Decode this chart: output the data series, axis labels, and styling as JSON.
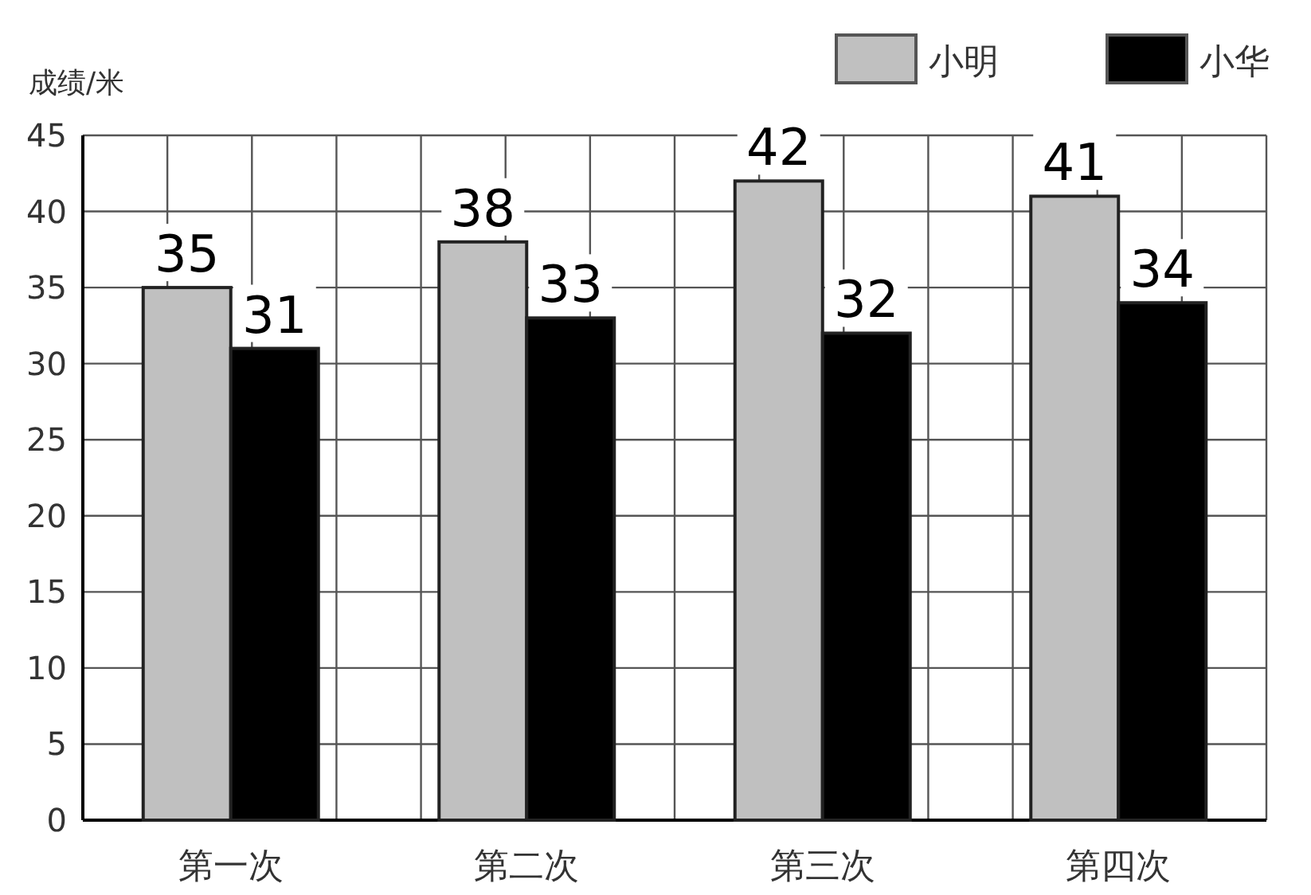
{
  "chart_data": {
    "type": "bar",
    "ylabel": "成绩/米",
    "categories": [
      "第一次",
      "第二次",
      "第三次",
      "第四次"
    ],
    "series": [
      {
        "name": "小明",
        "color": "#c0c0c0",
        "values": [
          35,
          38,
          42,
          41
        ]
      },
      {
        "name": "小华",
        "color": "#000000",
        "values": [
          31,
          33,
          32,
          34
        ]
      }
    ],
    "ylim": [
      0,
      45
    ],
    "yticks": [
      0,
      5,
      10,
      15,
      20,
      25,
      30,
      35,
      40,
      45
    ],
    "grid": true,
    "legend": "top right",
    "data_labels": true
  }
}
